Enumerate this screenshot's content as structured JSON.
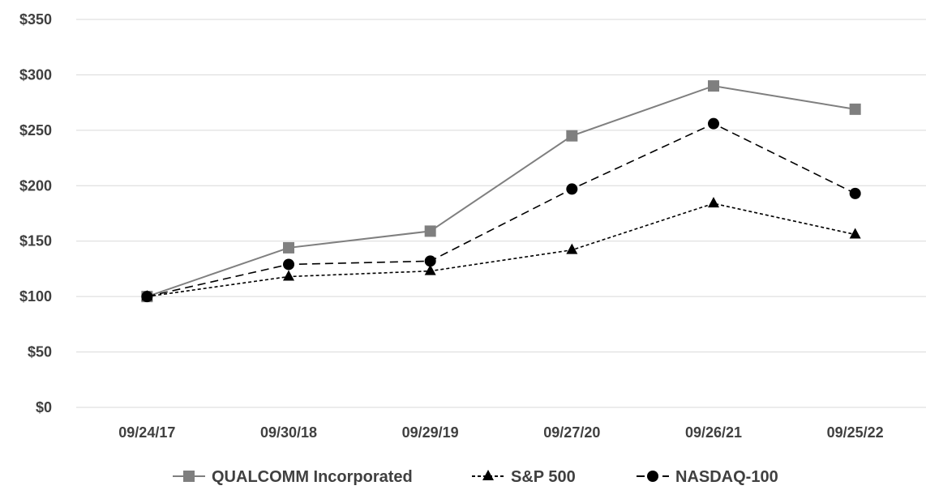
{
  "chart_data": {
    "type": "line",
    "title": "",
    "xlabel": "",
    "ylabel": "",
    "categories": [
      "09/24/17",
      "09/30/18",
      "09/29/19",
      "09/27/20",
      "09/26/21",
      "09/25/22"
    ],
    "ylim": [
      0,
      350
    ],
    "yticks": [
      0,
      50,
      100,
      150,
      200,
      250,
      300,
      350
    ],
    "ytick_labels": [
      "$0",
      "$50",
      "$100",
      "$150",
      "$200",
      "$250",
      "$300",
      "$350"
    ],
    "grid": "horizontal",
    "legend_position": "bottom",
    "series": [
      {
        "name": "QUALCOMM Incorporated",
        "values": [
          100,
          144,
          159,
          245,
          290,
          269
        ],
        "color": "#7f7f7f",
        "marker": "square",
        "line": "solid"
      },
      {
        "name": "S&P 500",
        "values": [
          100,
          118,
          123,
          142,
          184,
          156
        ],
        "color": "#000000",
        "marker": "triangle",
        "line": "dotted"
      },
      {
        "name": "NASDAQ-100",
        "values": [
          100,
          129,
          132,
          197,
          256,
          193
        ],
        "color": "#000000",
        "marker": "circle",
        "line": "dashed"
      }
    ]
  }
}
